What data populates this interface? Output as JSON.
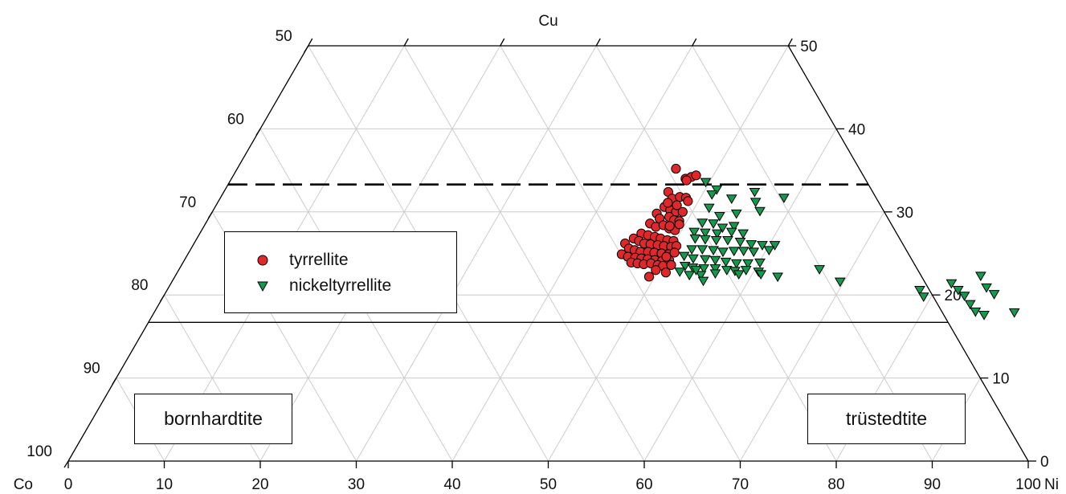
{
  "chart_data": {
    "type": "ternary-scatter",
    "axes": {
      "top": {
        "label": "Cu",
        "range": [
          50,
          100
        ],
        "ticks": [
          50,
          40,
          30,
          20,
          10,
          0
        ]
      },
      "left": {
        "label": "Co",
        "ticks": [
          50,
          60,
          70,
          80,
          90,
          100
        ]
      },
      "bottom": {
        "label": "Ni",
        "ticks": [
          0,
          10,
          20,
          30,
          40,
          50,
          60,
          70,
          80,
          90,
          100
        ]
      }
    },
    "grid": true,
    "reference_lines": [
      {
        "style": "dashed",
        "Cu": 33.3
      },
      {
        "style": "solid",
        "Cu": 16.7
      }
    ],
    "fields": [
      {
        "label": "bornhardtite",
        "position": "bottom-left"
      },
      {
        "label": "trüstedtite",
        "position": "bottom-right"
      }
    ],
    "legend_position": "left",
    "series": [
      {
        "name": "tyrrellite",
        "marker": "circle",
        "color": "#e0282a",
        "points": [
          [
            45.7,
            35.2
          ],
          [
            47.3,
            34.0
          ],
          [
            47.8,
            34.2
          ],
          [
            48.2,
            34.4
          ],
          [
            47.5,
            33.8
          ],
          [
            46.3,
            32.4
          ],
          [
            47.1,
            31.6
          ],
          [
            47.8,
            31.8
          ],
          [
            48.5,
            31.7
          ],
          [
            48.9,
            31.3
          ],
          [
            46.8,
            30.6
          ],
          [
            47.6,
            30.2
          ],
          [
            48.3,
            30.0
          ],
          [
            49.0,
            30.0
          ],
          [
            46.4,
            29.8
          ],
          [
            47.0,
            29.2
          ],
          [
            47.9,
            29.4
          ],
          [
            48.6,
            29.0
          ],
          [
            49.2,
            28.9
          ],
          [
            46.3,
            28.6
          ],
          [
            47.1,
            28.2
          ],
          [
            47.8,
            28.4
          ],
          [
            48.6,
            28.0
          ],
          [
            49.3,
            27.8
          ],
          [
            46.0,
            27.4
          ],
          [
            46.8,
            27.2
          ],
          [
            47.6,
            27.0
          ],
          [
            48.3,
            26.8
          ],
          [
            49.1,
            26.6
          ],
          [
            49.8,
            26.5
          ],
          [
            45.5,
            26.8
          ],
          [
            46.2,
            26.5
          ],
          [
            46.9,
            26.2
          ],
          [
            47.6,
            26.1
          ],
          [
            48.4,
            26.0
          ],
          [
            49.1,
            25.9
          ],
          [
            49.9,
            25.8
          ],
          [
            50.4,
            25.9
          ],
          [
            44.9,
            26.2
          ],
          [
            45.6,
            25.6
          ],
          [
            46.3,
            25.4
          ],
          [
            47.0,
            25.2
          ],
          [
            47.8,
            25.2
          ],
          [
            48.5,
            25.1
          ],
          [
            49.3,
            25.0
          ],
          [
            50.1,
            24.9
          ],
          [
            50.6,
            25.1
          ],
          [
            45.2,
            24.9
          ],
          [
            46.0,
            24.6
          ],
          [
            46.8,
            24.5
          ],
          [
            47.5,
            24.4
          ],
          [
            48.2,
            24.3
          ],
          [
            49.0,
            24.2
          ],
          [
            49.8,
            24.1
          ],
          [
            50.5,
            24.2
          ],
          [
            46.7,
            23.9
          ],
          [
            47.4,
            23.8
          ],
          [
            48.1,
            23.7
          ],
          [
            48.8,
            23.8
          ],
          [
            49.6,
            23.6
          ],
          [
            50.2,
            23.5
          ],
          [
            51.0,
            23.6
          ],
          [
            49.7,
            23.0
          ],
          [
            50.9,
            22.7
          ],
          [
            49.4,
            22.2
          ],
          [
            48.5,
            28.3
          ],
          [
            49.4,
            28.5
          ],
          [
            48.0,
            30.8
          ],
          [
            46.9,
            31.1
          ],
          [
            50.0,
            24.6
          ]
        ]
      },
      {
        "name": "nickeltyrrellite",
        "marker": "triangle-down",
        "color": "#149a4c",
        "points": [
          [
            49.6,
            33.6
          ],
          [
            51.2,
            32.7
          ],
          [
            55.3,
            32.4
          ],
          [
            58.7,
            31.7
          ],
          [
            51.0,
            32.1
          ],
          [
            53.3,
            31.6
          ],
          [
            56.0,
            31.2
          ],
          [
            51.5,
            30.5
          ],
          [
            53.1,
            29.5
          ],
          [
            54.7,
            29.8
          ],
          [
            57.0,
            30.1
          ],
          [
            51.7,
            28.7
          ],
          [
            52.9,
            28.6
          ],
          [
            54.1,
            28.1
          ],
          [
            55.2,
            28.3
          ],
          [
            51.4,
            27.6
          ],
          [
            52.6,
            27.5
          ],
          [
            53.9,
            27.4
          ],
          [
            55.3,
            27.6
          ],
          [
            56.6,
            27.4
          ],
          [
            51.9,
            26.8
          ],
          [
            53.0,
            26.7
          ],
          [
            54.2,
            26.6
          ],
          [
            55.4,
            26.6
          ],
          [
            56.8,
            26.4
          ],
          [
            58.1,
            26.1
          ],
          [
            59.3,
            26.0
          ],
          [
            60.6,
            26.0
          ],
          [
            52.2,
            25.5
          ],
          [
            53.3,
            25.5
          ],
          [
            54.5,
            25.4
          ],
          [
            55.6,
            25.2
          ],
          [
            56.7,
            25.3
          ],
          [
            57.7,
            25.3
          ],
          [
            58.8,
            25.2
          ],
          [
            60.3,
            25.4
          ],
          [
            51.8,
            24.7
          ],
          [
            52.9,
            24.4
          ],
          [
            54.2,
            24.3
          ],
          [
            55.3,
            24.2
          ],
          [
            56.5,
            24.0
          ],
          [
            57.7,
            23.8
          ],
          [
            58.9,
            23.8
          ],
          [
            60.1,
            23.9
          ],
          [
            52.5,
            23.5
          ],
          [
            53.4,
            23.3
          ],
          [
            54.6,
            23.2
          ],
          [
            55.8,
            23.2
          ],
          [
            57.1,
            23.0
          ],
          [
            58.0,
            22.9
          ],
          [
            59.1,
            23.0
          ],
          [
            60.5,
            22.8
          ],
          [
            53.5,
            22.4
          ],
          [
            54.7,
            22.4
          ],
          [
            55.3,
            21.7
          ],
          [
            52.3,
            22.8
          ],
          [
            53.9,
            23.0
          ],
          [
            56.1,
            22.6
          ],
          [
            58.6,
            22.5
          ],
          [
            60.9,
            22.5
          ],
          [
            62.8,
            22.2
          ],
          [
            66.7,
            23.1
          ],
          [
            69.6,
            21.6
          ],
          [
            78.4,
            20.6
          ],
          [
            79.2,
            19.8
          ],
          [
            81.3,
            21.4
          ],
          [
            82.4,
            20.6
          ],
          [
            83.4,
            19.9
          ],
          [
            85.2,
            20.9
          ],
          [
            83.9,
            22.3
          ],
          [
            86.4,
            20.1
          ],
          [
            84.5,
            18.9
          ],
          [
            85.5,
            18.0
          ],
          [
            86.6,
            17.6
          ],
          [
            89.6,
            17.9
          ]
        ]
      }
    ]
  }
}
